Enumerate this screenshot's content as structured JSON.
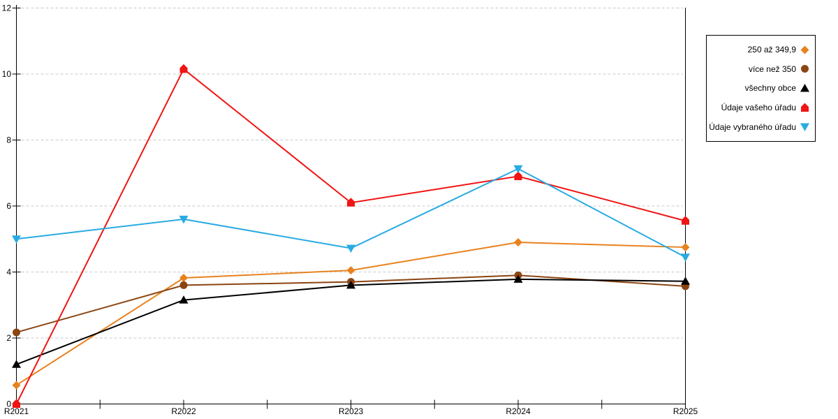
{
  "chart_data": {
    "type": "line",
    "title": "",
    "xlabel": "",
    "ylabel": "",
    "x_categories": [
      "R2021",
      "R2022",
      "R2023",
      "R2024",
      "R2025"
    ],
    "ylim": [
      0,
      12
    ],
    "y_ticks": [
      0,
      2,
      4,
      6,
      8,
      10,
      12
    ],
    "grid": "horizontal-dashed",
    "gridline_color": "#c9c9c9",
    "axis_color": "#000000",
    "legend_position": "outside-right",
    "series": [
      {
        "name": "250 až 349,9",
        "color": "#E8821E",
        "marker": "diamond",
        "values": [
          0.57,
          3.82,
          4.05,
          4.9,
          4.75
        ]
      },
      {
        "name": "více než 350",
        "color": "#8B4513",
        "marker": "circle",
        "values": [
          2.17,
          3.6,
          3.7,
          3.9,
          3.57
        ]
      },
      {
        "name": "všechny obce",
        "color": "#000000",
        "marker": "triangle-up",
        "values": [
          1.2,
          3.15,
          3.6,
          3.78,
          3.72
        ]
      },
      {
        "name": "Údaje vašeho úřadu",
        "color": "#F01414",
        "marker": "pentagon",
        "values": [
          0,
          10.15,
          6.1,
          6.9,
          5.55
        ]
      },
      {
        "name": "Údaje vybraného úřadu",
        "color": "#29ABE2",
        "marker": "triangle-down",
        "values": [
          5.0,
          5.6,
          4.72,
          7.13,
          4.45
        ]
      }
    ]
  }
}
